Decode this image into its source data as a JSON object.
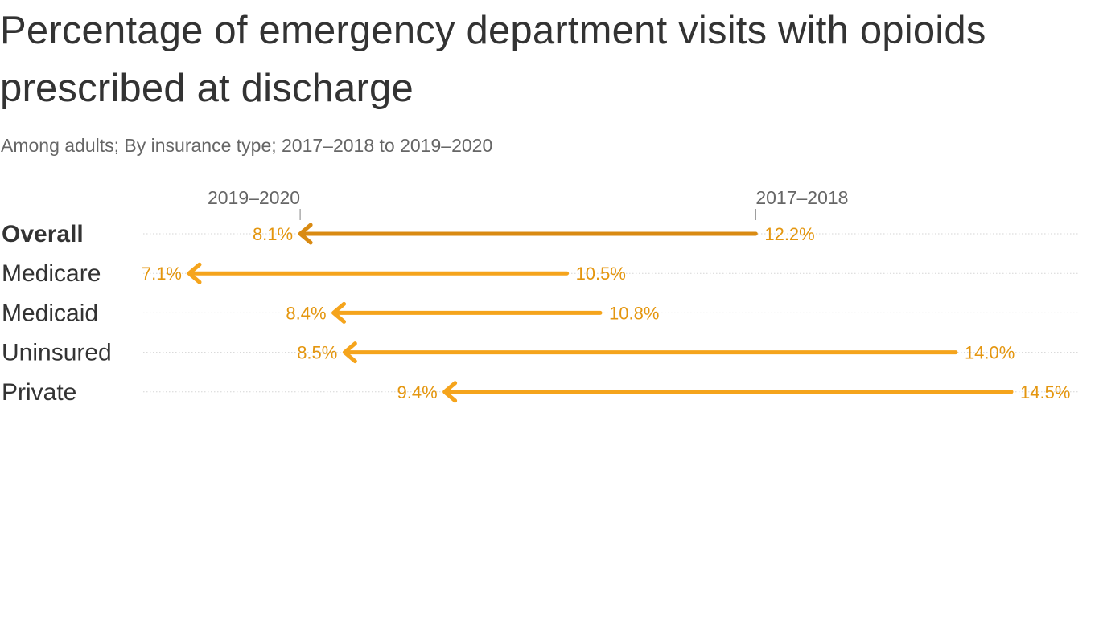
{
  "header": {
    "title": "Percentage of emergency department visits with opioids prescribed at discharge",
    "subtitle": "Among adults; By insurance type; 2017–2018 to 2019–2020"
  },
  "chart_data": {
    "type": "arrow",
    "title": "Percentage of emergency department visits with opioids prescribed at discharge",
    "subtitle": "Among adults; By insurance type; 2017–2018 to 2019–2020",
    "start_label": "2017–2018",
    "end_label": "2019–2020",
    "unit": "%",
    "categories": [
      "Overall",
      "Medicare",
      "Medicaid",
      "Uninsured",
      "Private"
    ],
    "series": [
      {
        "name": "2017–2018",
        "values": [
          12.2,
          10.5,
          10.8,
          14.0,
          14.5
        ]
      },
      {
        "name": "2019–2020",
        "values": [
          8.1,
          7.1,
          8.4,
          8.5,
          9.4
        ]
      }
    ],
    "highlight_category": "Overall",
    "colors": {
      "highlight": "#D98A12",
      "arrow": "#F5A41C",
      "label_text": "#E4960F",
      "gridline": "#D5D5D5",
      "text": "#333333",
      "muted_text": "#666666"
    }
  }
}
